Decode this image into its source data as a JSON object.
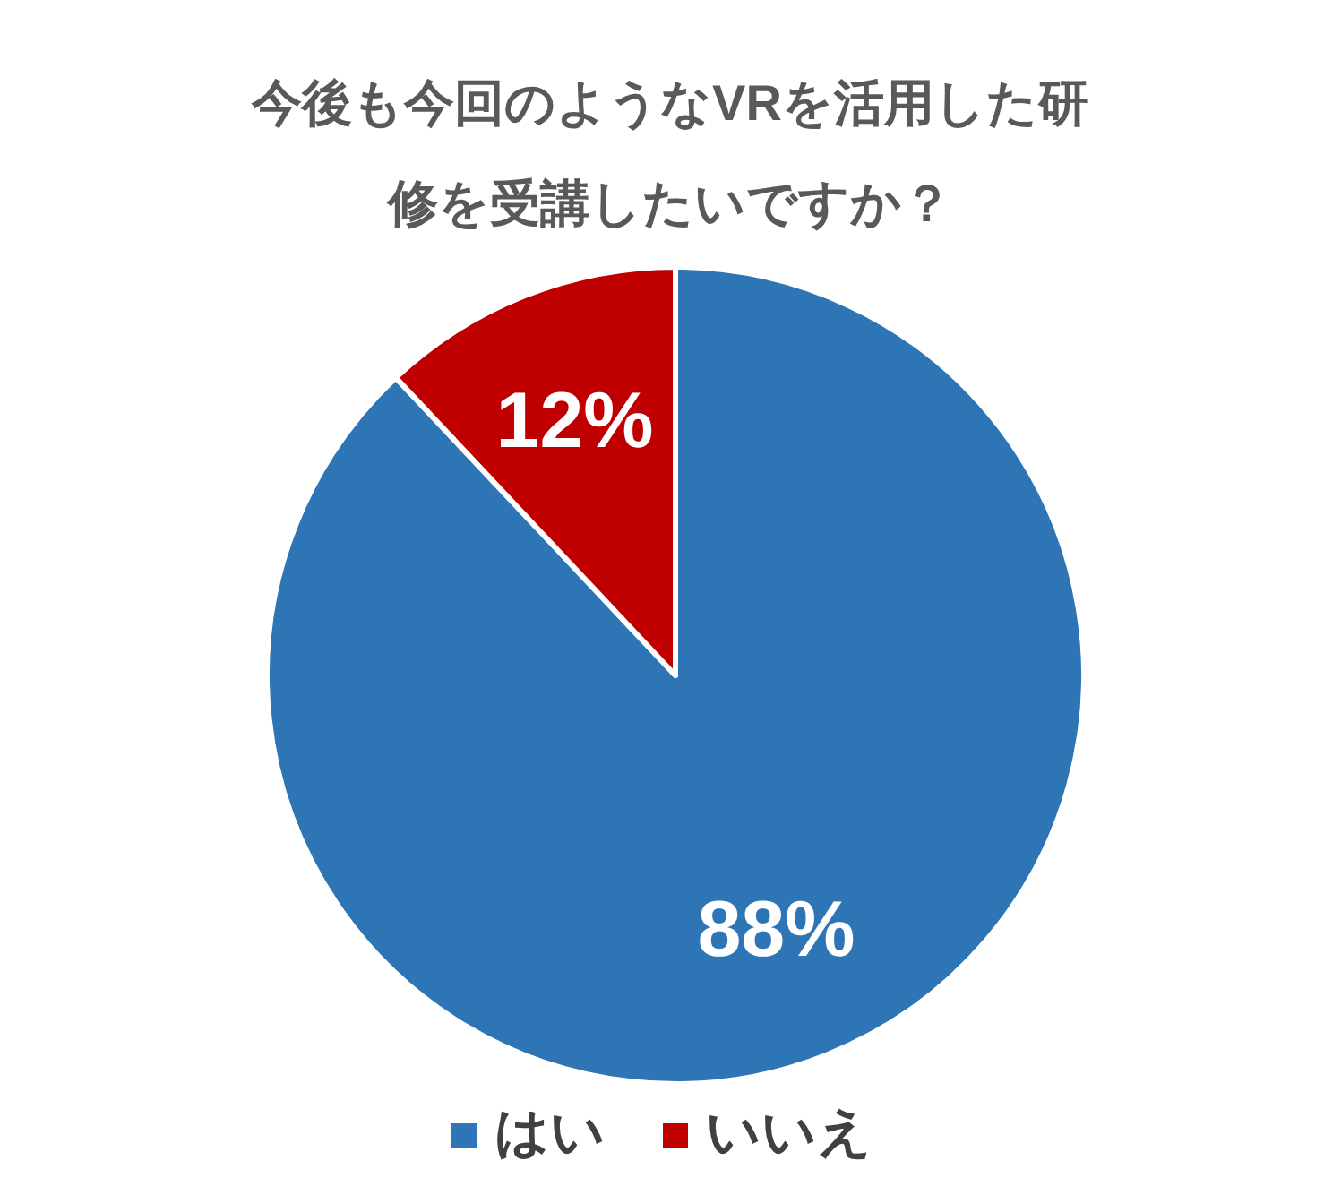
{
  "chart_data": {
    "type": "pie",
    "title": "今後も今回のようなVRを活用した研修を受講したいですか？",
    "categories": [
      "はい",
      "いいえ"
    ],
    "values": [
      88,
      12
    ],
    "colors": [
      "#2e75b6",
      "#c00000"
    ],
    "value_labels": [
      "88%",
      "12%"
    ],
    "legend": "bottom"
  }
}
